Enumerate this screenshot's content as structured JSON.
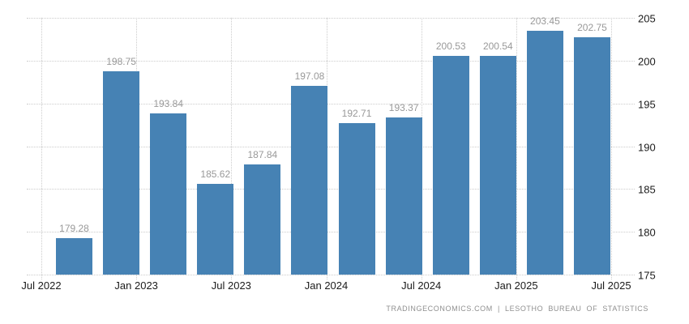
{
  "chart_data": {
    "type": "bar",
    "values": [
      179.28,
      198.75,
      193.84,
      185.62,
      187.84,
      197.08,
      192.71,
      193.37,
      200.53,
      200.54,
      203.45,
      202.75
    ],
    "bar_value_labels": [
      "179.28",
      "198.75",
      "193.84",
      "185.62",
      "187.84",
      "197.08",
      "192.71",
      "193.37",
      "200.53",
      "200.54",
      "203.45",
      "202.75"
    ],
    "x_tick_labels": [
      "Jul 2022",
      "Jan 2023",
      "Jul 2023",
      "Jan 2024",
      "Jul 2024",
      "Jan 2025",
      "Jul 2025"
    ],
    "y_tick_labels": [
      "205",
      "200",
      "195",
      "190",
      "185",
      "180",
      "175"
    ],
    "ylim": [
      175,
      205
    ],
    "y_step": 5,
    "grid": "dotted horizontal and vertical gridlines",
    "legend": "none",
    "title": "",
    "colors": {
      "bar": "#4682b4",
      "value_label": "#999999",
      "axis_label": "#1b1b1b",
      "gridline": "#cccccc",
      "background": "#ffffff",
      "footer_text": "#8f8f8f"
    }
  },
  "footer": {
    "attribution": "TRADINGECONOMICS.COM | LESOTHO BUREAU OF STATISTICS"
  }
}
